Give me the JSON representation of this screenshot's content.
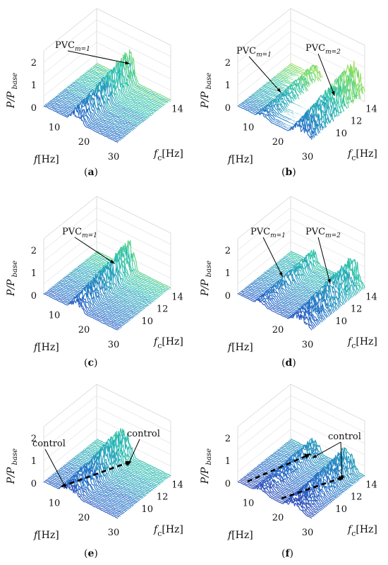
{
  "chart_data": [
    {
      "panel_id": "a",
      "caption": "a",
      "type": "waterfall",
      "zlabel": "P/P",
      "zlabel_sub": "base",
      "xlabel": "f",
      "xlabel_unit": "[Hz]",
      "ylabel": "f",
      "ylabel_sub": "c",
      "ylabel_unit": "[Hz]",
      "x_ticks": [
        "10",
        "20",
        "30"
      ],
      "y_ticks": [
        "14"
      ],
      "z_ticks": [
        "0",
        "1",
        "2"
      ],
      "xlim": [
        5,
        30
      ],
      "ylim": [
        8,
        15
      ],
      "zlim": [
        0,
        2.5
      ],
      "lines": 40,
      "ridges": [
        {
          "x0": 13,
          "x1": 19,
          "amp": 1.4
        }
      ],
      "grid": true,
      "annotations": [
        {
          "text": "PVC",
          "sub": "m=1",
          "target": [
            17.5,
            14.5,
            1.0
          ]
        }
      ]
    },
    {
      "panel_id": "b",
      "caption": "b",
      "type": "waterfall",
      "zlabel": "P/P",
      "zlabel_sub": "base",
      "xlabel": "f",
      "xlabel_unit": "[Hz]",
      "ylabel": "f",
      "ylabel_sub": "c",
      "ylabel_unit": "[Hz]",
      "x_ticks": [
        "10",
        "20",
        "30"
      ],
      "y_ticks": [
        "10",
        "12",
        "14"
      ],
      "z_ticks": [
        "0",
        "1",
        "2"
      ],
      "xlim": [
        5,
        30
      ],
      "ylim": [
        8,
        15
      ],
      "zlim": [
        0,
        2.5
      ],
      "lines": 40,
      "ridges": [
        {
          "x0": 11,
          "x1": 16,
          "amp": 0.6
        },
        {
          "x0": 22,
          "x1": 31,
          "amp": 1.6
        }
      ],
      "grid": true,
      "annotations": [
        {
          "text": "PVC",
          "sub": "m=1",
          "target": [
            12.0,
            11.0,
            0.3
          ]
        },
        {
          "text": "PVC",
          "sub": "m=2",
          "target": [
            27.5,
            12.0,
            0.9
          ]
        }
      ]
    },
    {
      "panel_id": "c",
      "caption": "c",
      "type": "waterfall",
      "zlabel": "P/P",
      "zlabel_sub": "base",
      "xlabel": "f",
      "xlabel_unit": "[Hz]",
      "ylabel": "f",
      "ylabel_sub": "c",
      "ylabel_unit": "[Hz]",
      "x_ticks": [
        "10",
        "20",
        "30"
      ],
      "y_ticks": [
        "10",
        "12",
        "14"
      ],
      "z_ticks": [
        "0",
        "1",
        "2"
      ],
      "xlim": [
        5,
        30
      ],
      "ylim": [
        8,
        15
      ],
      "zlim": [
        0,
        2.5
      ],
      "lines": 40,
      "ridges": [
        {
          "x0": 13,
          "x1": 19,
          "amp": 1.3
        }
      ],
      "grid": true,
      "annotations": [
        {
          "text": "PVC",
          "sub": "m=1",
          "target": [
            17.5,
            12.5,
            1.0
          ]
        }
      ]
    },
    {
      "panel_id": "d",
      "caption": "d",
      "type": "waterfall",
      "zlabel": "P/P",
      "zlabel_sub": "base",
      "xlabel": "f",
      "xlabel_unit": "[Hz]",
      "ylabel": "f",
      "ylabel_sub": "c",
      "ylabel_unit": "[Hz]",
      "x_ticks": [
        "20",
        "30"
      ],
      "y_ticks": [
        "10",
        "12",
        "14"
      ],
      "z_ticks": [
        "0",
        "1",
        "2"
      ],
      "xlim": [
        5,
        30
      ],
      "ylim": [
        8,
        15
      ],
      "zlim": [
        0,
        2.5
      ],
      "lines": 40,
      "ridges": [
        {
          "x0": 10.5,
          "x1": 15,
          "amp": 0.6
        },
        {
          "x0": 22,
          "x1": 30,
          "amp": 1.2
        }
      ],
      "grid": true,
      "annotations": [
        {
          "text": "PVC",
          "sub": "m=1",
          "target": [
            12.5,
            11.0,
            0.5
          ]
        },
        {
          "text": "PVC",
          "sub": "m=2",
          "target": [
            26.0,
            12.0,
            0.8
          ]
        }
      ]
    },
    {
      "panel_id": "e",
      "caption": "e",
      "type": "waterfall",
      "zlabel": "P/P",
      "zlabel_sub": "base",
      "xlabel": "f",
      "xlabel_unit": "[Hz]",
      "ylabel": "f",
      "ylabel_sub": "c",
      "ylabel_unit": "[Hz]",
      "x_ticks": [
        "10",
        "20",
        "30"
      ],
      "y_ticks": [
        "10",
        "12",
        "14"
      ],
      "z_ticks": [
        "0",
        "1",
        "2"
      ],
      "xlim": [
        5,
        30
      ],
      "ylim": [
        8,
        15
      ],
      "zlim": [
        0,
        2.5
      ],
      "lines": 40,
      "ridges": [
        {
          "x0": 10,
          "x1": 18,
          "amp": 1.2
        }
      ],
      "grid": true,
      "control_path": [
        [
          10.5,
          8.2
        ],
        [
          18.5,
          14.3
        ]
      ],
      "annotations": [
        {
          "text": "control",
          "target": [
            11.0,
            8.6,
            0.0
          ]
        },
        {
          "text": "control",
          "target": [
            18.0,
            14.0,
            0.0
          ]
        }
      ]
    },
    {
      "panel_id": "f",
      "caption": "f",
      "type": "waterfall",
      "zlabel": "P/P",
      "zlabel_sub": "base",
      "xlabel": "f",
      "xlabel_unit": "[Hz]",
      "ylabel": "f",
      "ylabel_sub": "c",
      "ylabel_unit": "[Hz]",
      "x_ticks": [
        "10",
        "20",
        "30"
      ],
      "y_ticks": [
        "10",
        "12",
        "14"
      ],
      "z_ticks": [
        "0",
        "1",
        "2"
      ],
      "xlim": [
        5,
        30
      ],
      "ylim": [
        8,
        15
      ],
      "zlim": [
        0,
        2.5
      ],
      "lines": 40,
      "ridges": [
        {
          "x0": 10,
          "x1": 16,
          "amp": 0.6
        },
        {
          "x0": 20,
          "x1": 28,
          "amp": 0.9
        }
      ],
      "grid": true,
      "control_path": [
        [
          7.5,
          8.3
        ],
        [
          13.5,
          14.3
        ]
      ],
      "control_path_2": [
        [
          19.0,
          8.3
        ],
        [
          26.5,
          13.7
        ]
      ],
      "annotations": [
        {
          "text": "control",
          "target": [
            14.0,
            14.3,
            0.0
          ]
        },
        {
          "text": "control",
          "target": [
            26.0,
            13.6,
            0.0
          ]
        }
      ]
    }
  ]
}
